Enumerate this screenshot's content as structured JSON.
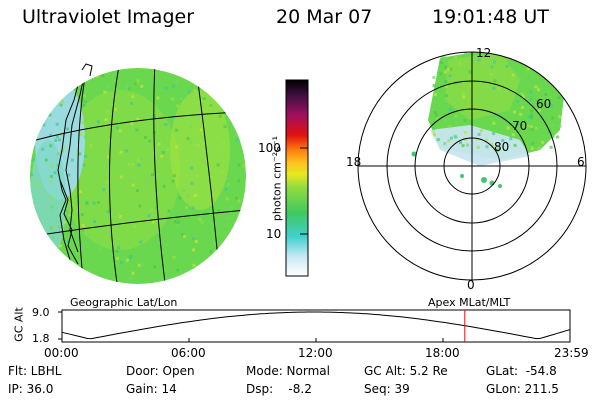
{
  "header": {
    "title": "Ultraviolet Imager",
    "date": "20 Mar 07",
    "time": "19:01:48 UT"
  },
  "colorbar": {
    "label": "photon cm⁻²s⁻¹",
    "ticks": [
      "100",
      "10"
    ],
    "colors": [
      "#000000",
      "#4a0a4a",
      "#8a1f6a",
      "#c01010",
      "#ff3010",
      "#ff9a10",
      "#f0e020",
      "#b0e030",
      "#60d050",
      "#40d0b0",
      "#80d0f0",
      "#e8f4f8"
    ]
  },
  "left_panel": {
    "caption": "Geographic Lat/Lon"
  },
  "right_panel": {
    "caption": "Apex MLat/MLT",
    "mlt_labels": {
      "top": "12",
      "left": "18",
      "right": "6",
      "bottom": "0"
    },
    "lat_labels": [
      "60",
      "70",
      "80"
    ]
  },
  "timeline": {
    "axis_label": "GC Alt",
    "y_ticks": [
      "9.0",
      "1.8"
    ],
    "x_ticks": [
      "00:00",
      "06:00",
      "12:00",
      "18:00",
      "23:59"
    ],
    "marker_color": "#ff0000",
    "marker_time_hours": 19.03
  },
  "info": {
    "flt": "Flt: LBHL",
    "ip": "IP: 36.0",
    "door": "Door: Open",
    "gain": "Gain: 14",
    "mode": "Mode: Normal",
    "dsp": "Dsp:    -8.2",
    "gc_alt": "GC Alt: 5.2 Re",
    "seq": "Seq: 39",
    "glat": "GLat:  -54.8",
    "glon": "GLon: 211.5"
  },
  "colors": {
    "aurora_green": "#5fd44a",
    "aurora_light": "#a0ea40",
    "aurora_cyan": "#80dcdc"
  }
}
